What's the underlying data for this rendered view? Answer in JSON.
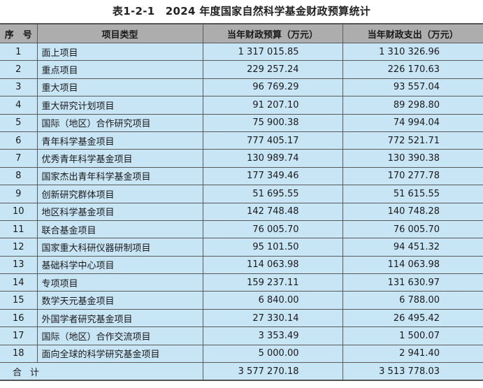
{
  "title": "表1-2-1　2024 年度国家自然科学基金财政预算统计",
  "headers": [
    "序　号",
    "项目类型",
    "当年财政预算（万元）",
    "当年财政支出（万元）"
  ],
  "rows": [
    {
      "no": "1",
      "name": "面上项目",
      "budget": "1 317 015.85",
      "expense": "1 310 326.96"
    },
    {
      "no": "2",
      "name": "重点项目",
      "budget": "229 257.24",
      "expense": "226 170.63"
    },
    {
      "no": "3",
      "name": "重大项目",
      "budget": "96 769.29",
      "expense": "93 557.04"
    },
    {
      "no": "4",
      "name": "重大研究计划项目",
      "budget": "91 207.10",
      "expense": "89 298.80"
    },
    {
      "no": "5",
      "name": "国际（地区）合作研究项目",
      "budget": "75 900.38",
      "expense": "74 994.04"
    },
    {
      "no": "6",
      "name": "青年科学基金项目",
      "budget": "777 405.17",
      "expense": "772 521.71"
    },
    {
      "no": "7",
      "name": "优秀青年科学基金项目",
      "budget": "130 989.74",
      "expense": "130 390.38"
    },
    {
      "no": "8",
      "name": "国家杰出青年科学基金项目",
      "budget": "177 349.46",
      "expense": "170 277.78"
    },
    {
      "no": "9",
      "name": "创新研究群体项目",
      "budget": "51 695.55",
      "expense": "51 615.55"
    },
    {
      "no": "10",
      "name": "地区科学基金项目",
      "budget": "142 748.48",
      "expense": "140 748.28"
    },
    {
      "no": "11",
      "name": "联合基金项目",
      "budget": "76 005.70",
      "expense": "76 005.70"
    },
    {
      "no": "12",
      "name": "国家重大科研仪器研制项目",
      "budget": "95 101.50",
      "expense": "94 451.32"
    },
    {
      "no": "13",
      "name": "基础科学中心项目",
      "budget": "114 063.98",
      "expense": "114 063.98"
    },
    {
      "no": "14",
      "name": "专项项目",
      "budget": "159 237.11",
      "expense": "131 630.97"
    },
    {
      "no": "15",
      "name": "数学天元基金项目",
      "budget": "6 840.00",
      "expense": "6 788.00"
    },
    {
      "no": "16",
      "name": "外国学者研究基金项目",
      "budget": "27 330.14",
      "expense": "26 495.42"
    },
    {
      "no": "17",
      "name": "国际（地区）合作交流项目",
      "budget": "3 353.49",
      "expense": "1 500.07"
    },
    {
      "no": "18",
      "name": "面向全球的科学研究基金项目",
      "budget": "5 000.00",
      "expense": "2 941.40"
    }
  ],
  "total": {
    "label": "合计",
    "budget": "3 577 270.18",
    "expense": "3 513 778.03"
  },
  "colors": {
    "header_bg": "#adadad",
    "row_bg": "#c8e5f5",
    "border": "#5a5a5a"
  }
}
